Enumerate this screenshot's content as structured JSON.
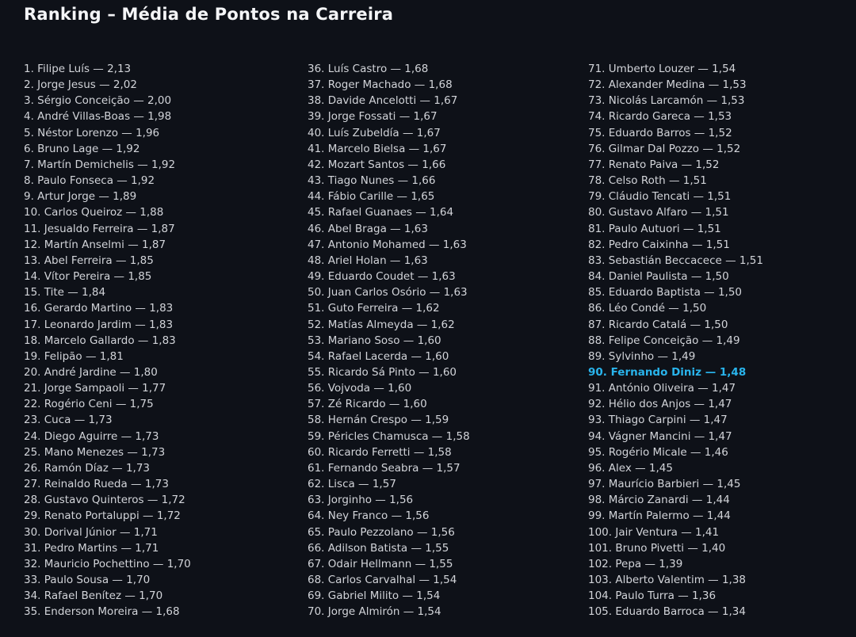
{
  "page": {
    "title": "Ranking – Média de Pontos na Carreira",
    "background_color": "#0e1118",
    "text_color": "#d2d4d9",
    "title_color": "#f4f5f7",
    "highlight_color": "#29b4ec"
  },
  "ranking": {
    "columns": [
      {
        "items": [
          {
            "text": "1. Filipe Luís — 2,13"
          },
          {
            "text": "2. Jorge Jesus — 2,02"
          },
          {
            "text": "3. Sérgio Conceição — 2,00"
          },
          {
            "text": "4. André Villas-Boas — 1,98"
          },
          {
            "text": "5. Néstor Lorenzo — 1,96"
          },
          {
            "text": "6. Bruno Lage — 1,92"
          },
          {
            "text": "7. Martín Demichelis — 1,92"
          },
          {
            "text": "8. Paulo Fonseca — 1,92"
          },
          {
            "text": "9. Artur Jorge — 1,89"
          },
          {
            "text": "10. Carlos Queiroz — 1,88"
          },
          {
            "text": "11. Jesualdo Ferreira — 1,87"
          },
          {
            "text": "12. Martín Anselmi — 1,87"
          },
          {
            "text": "13. Abel Ferreira — 1,85"
          },
          {
            "text": "14. Vítor Pereira — 1,85"
          },
          {
            "text": "15. Tite — 1,84"
          },
          {
            "text": "16. Gerardo Martino — 1,83"
          },
          {
            "text": "17. Leonardo Jardim — 1,83"
          },
          {
            "text": "18. Marcelo Gallardo — 1,83"
          },
          {
            "text": "19. Felipão — 1,81"
          },
          {
            "text": "20. André Jardine — 1,80"
          },
          {
            "text": "21. Jorge Sampaoli — 1,77"
          },
          {
            "text": "22. Rogério Ceni — 1,75"
          },
          {
            "text": "23. Cuca — 1,73"
          },
          {
            "text": "24. Diego Aguirre — 1,73"
          },
          {
            "text": "25. Mano Menezes — 1,73"
          },
          {
            "text": "26. Ramón Díaz — 1,73"
          },
          {
            "text": "27. Reinaldo Rueda — 1,73"
          },
          {
            "text": "28. Gustavo Quinteros — 1,72"
          },
          {
            "text": "29. Renato Portaluppi — 1,72"
          },
          {
            "text": "30. Dorival Júnior — 1,71"
          },
          {
            "text": "31. Pedro Martins — 1,71"
          },
          {
            "text": "32. Mauricio Pochettino — 1,70"
          },
          {
            "text": "33. Paulo Sousa — 1,70"
          },
          {
            "text": "34. Rafael Benítez — 1,70"
          },
          {
            "text": "35. Enderson Moreira — 1,68"
          }
        ]
      },
      {
        "items": [
          {
            "text": "36. Luís Castro — 1,68"
          },
          {
            "text": "37. Roger Machado — 1,68"
          },
          {
            "text": "38. Davide Ancelotti — 1,67"
          },
          {
            "text": "39. Jorge Fossati — 1,67"
          },
          {
            "text": "40. Luís Zubeldía — 1,67"
          },
          {
            "text": "41. Marcelo Bielsa — 1,67"
          },
          {
            "text": "42. Mozart Santos — 1,66"
          },
          {
            "text": "43. Tiago Nunes — 1,66"
          },
          {
            "text": "44. Fábio Carille — 1,65"
          },
          {
            "text": "45. Rafael Guanaes — 1,64"
          },
          {
            "text": "46. Abel Braga — 1,63"
          },
          {
            "text": "47. Antonio Mohamed — 1,63"
          },
          {
            "text": "48. Ariel Holan — 1,63"
          },
          {
            "text": "49. Eduardo Coudet — 1,63"
          },
          {
            "text": "50. Juan Carlos Osório — 1,63"
          },
          {
            "text": "51. Guto Ferreira — 1,62"
          },
          {
            "text": "52. Matías Almeyda — 1,62"
          },
          {
            "text": "53. Mariano Soso — 1,60"
          },
          {
            "text": "54. Rafael Lacerda — 1,60"
          },
          {
            "text": "55. Ricardo Sá Pinto — 1,60"
          },
          {
            "text": "56. Vojvoda — 1,60"
          },
          {
            "text": "57. Zé Ricardo — 1,60"
          },
          {
            "text": "58. Hernán Crespo — 1,59"
          },
          {
            "text": "59. Péricles Chamusca — 1,58"
          },
          {
            "text": "60. Ricardo Ferretti — 1,58"
          },
          {
            "text": "61. Fernando Seabra — 1,57"
          },
          {
            "text": "62. Lisca — 1,57"
          },
          {
            "text": "63. Jorginho — 1,56"
          },
          {
            "text": "64. Ney Franco — 1,56"
          },
          {
            "text": "65. Paulo Pezzolano — 1,56"
          },
          {
            "text": "66. Adilson Batista — 1,55"
          },
          {
            "text": "67. Odair Hellmann — 1,55"
          },
          {
            "text": "68. Carlos Carvalhal — 1,54"
          },
          {
            "text": "69. Gabriel Milito — 1,54"
          },
          {
            "text": "70. Jorge Almirón — 1,54"
          }
        ]
      },
      {
        "items": [
          {
            "text": "71. Umberto Louzer — 1,54"
          },
          {
            "text": "72. Alexander Medina — 1,53"
          },
          {
            "text": "73. Nicolás Larcamón — 1,53"
          },
          {
            "text": "74. Ricardo Gareca — 1,53"
          },
          {
            "text": "75. Eduardo Barros — 1,52"
          },
          {
            "text": "76. Gilmar Dal Pozzo — 1,52"
          },
          {
            "text": "77. Renato Paiva — 1,52"
          },
          {
            "text": "78. Celso Roth — 1,51"
          },
          {
            "text": "79. Cláudio Tencati — 1,51"
          },
          {
            "text": "80. Gustavo Alfaro — 1,51"
          },
          {
            "text": "81. Paulo Autuori — 1,51"
          },
          {
            "text": "82. Pedro Caixinha — 1,51"
          },
          {
            "text": "83. Sebastián Beccacece — 1,51"
          },
          {
            "text": "84. Daniel Paulista — 1,50"
          },
          {
            "text": "85. Eduardo Baptista — 1,50"
          },
          {
            "text": "86. Léo Condé — 1,50"
          },
          {
            "text": "87. Ricardo Catalá — 1,50"
          },
          {
            "text": "88. Felipe Conceição — 1,49"
          },
          {
            "text": "89. Sylvinho — 1,49"
          },
          {
            "text": "90. Fernando Diniz — 1,48",
            "highlight": true
          },
          {
            "text": "91. António Oliveira — 1,47"
          },
          {
            "text": "92. Hélio dos Anjos — 1,47"
          },
          {
            "text": "93. Thiago Carpini — 1,47"
          },
          {
            "text": "94. Vágner Mancini — 1,47"
          },
          {
            "text": "95. Rogério Micale — 1,46"
          },
          {
            "text": "96. Alex — 1,45"
          },
          {
            "text": "97. Maurício Barbieri — 1,45"
          },
          {
            "text": "98. Márcio Zanardi — 1,44"
          },
          {
            "text": "99. Martín Palermo — 1,44"
          },
          {
            "text": "100. Jair Ventura — 1,41"
          },
          {
            "text": "101. Bruno Pivetti — 1,40"
          },
          {
            "text": "102. Pepa — 1,39"
          },
          {
            "text": "103. Alberto Valentim — 1,38"
          },
          {
            "text": "104. Paulo Turra — 1,36"
          },
          {
            "text": "105. Eduardo Barroca — 1,34"
          }
        ]
      }
    ]
  }
}
